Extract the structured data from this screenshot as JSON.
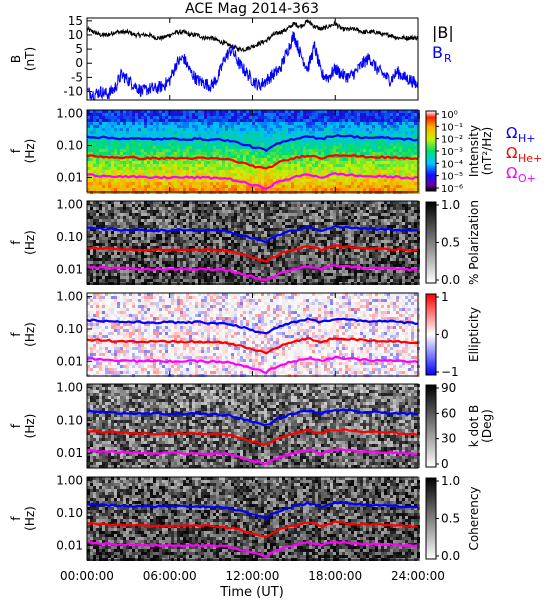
{
  "chart_data": {
    "type": "line",
    "title": "ACE Mag 2014-363",
    "xlabel": "Time (UT)",
    "x_ticks": [
      "00:00:00",
      "06:00:00",
      "12:00:00",
      "18:00:00",
      "24:00:00"
    ],
    "xlim_hours": [
      0,
      24
    ],
    "panels": [
      {
        "kind": "line",
        "ylabel": "B\n(nT)",
        "ylim": [
          -13,
          16
        ],
        "yticks": [
          "15",
          "10",
          "5",
          "0",
          "-5",
          "-10"
        ],
        "legend_items": [
          {
            "label": "|B|",
            "color": "#000000"
          },
          {
            "label": "B",
            "sub": "R",
            "color": "#0000ff"
          }
        ],
        "series": [
          {
            "name": "|B|",
            "color": "#000000",
            "x": [
              0,
              0.5,
              1,
              1.5,
              2,
              2.5,
              3,
              3.5,
              4,
              4.5,
              5,
              5.5,
              6,
              6.5,
              7,
              7.5,
              8,
              8.5,
              9,
              9.5,
              10,
              10.5,
              11,
              11.5,
              12,
              12.5,
              13,
              13.5,
              14,
              14.5,
              15,
              15.5,
              16,
              16.5,
              17,
              17.5,
              18,
              18.5,
              19,
              19.5,
              20,
              20.5,
              21,
              21.5,
              22,
              22.5,
              23,
              23.5,
              24
            ],
            "y": [
              12,
              11,
              10,
              10,
              11,
              11,
              11,
              10,
              10,
              10,
              9,
              9,
              10,
              11,
              11,
              10,
              10,
              9,
              9,
              8,
              7,
              6,
              5,
              5,
              6,
              7,
              8,
              10,
              11,
              12,
              14,
              13,
              15,
              13,
              12,
              13,
              14,
              12,
              12,
              12,
              11,
              11,
              11,
              10,
              10,
              9,
              9,
              9,
              9
            ]
          },
          {
            "name": "B_R",
            "color": "#0000ff",
            "x": [
              0,
              0.5,
              1,
              1.5,
              2,
              2.5,
              3,
              3.5,
              4,
              4.5,
              5,
              5.5,
              6,
              6.5,
              7,
              7.5,
              8,
              8.5,
              9,
              9.5,
              10,
              10.5,
              11,
              11.5,
              12,
              12.5,
              13,
              13.5,
              14,
              14.5,
              15,
              15.5,
              16,
              16.5,
              17,
              17.5,
              18,
              18.5,
              19,
              19.5,
              20,
              20.5,
              21,
              21.5,
              22,
              22.5,
              23,
              23.5,
              24
            ],
            "y": [
              -10,
              -11,
              -10,
              -11,
              -9,
              -4,
              -6,
              -8,
              -10,
              -9,
              -9,
              -8,
              -6,
              0,
              2,
              -3,
              -6,
              -7,
              -8,
              -5,
              2,
              5,
              0,
              -3,
              -6,
              -8,
              -6,
              -4,
              -2,
              4,
              10,
              3,
              -2,
              6,
              -4,
              -5,
              -2,
              -4,
              -5,
              -3,
              0,
              2,
              -2,
              -4,
              -6,
              -3,
              -5,
              -6,
              -8
            ]
          }
        ]
      },
      {
        "kind": "spectrogram",
        "ylabel": "f\n(Hz)",
        "ylim_log": [
          0.0035,
          1.3
        ],
        "yticks": [
          "1.00",
          "0.10",
          "0.01"
        ],
        "colorbar": {
          "type": "rainbow",
          "label": "Intensity\n(nT²/Hz)",
          "ticks": [
            "10⁰",
            "10⁻¹",
            "10⁻²",
            "10⁻³",
            "10⁻⁴",
            "10⁻⁵",
            "10⁻⁶"
          ]
        },
        "side_labels": [
          {
            "base": "Ω",
            "sub": "H+",
            "color": "#0000ff"
          },
          {
            "base": "Ω",
            "sub": "He+",
            "color": "#ff0000"
          },
          {
            "base": "Ω",
            "sub": "O+",
            "color": "#ff00ff"
          }
        ]
      },
      {
        "kind": "spectrogram",
        "ylabel": "f\n(Hz)",
        "ylim_log": [
          0.0035,
          1.3
        ],
        "yticks": [
          "1.00",
          "0.10",
          "0.01"
        ],
        "colorbar": {
          "type": "gray",
          "label": "% Polarization",
          "ticks": [
            "1.0",
            "0.5",
            "0.0"
          ]
        }
      },
      {
        "kind": "spectrogram",
        "ylabel": "f\n(Hz)",
        "ylim_log": [
          0.0035,
          1.3
        ],
        "yticks": [
          "1.00",
          "0.10",
          "0.01"
        ],
        "colorbar": {
          "type": "bwr",
          "label": "Ellipticity",
          "ticks": [
            "1",
            "0",
            "−1"
          ]
        }
      },
      {
        "kind": "spectrogram",
        "ylabel": "f\n(Hz)",
        "ylim_log": [
          0.0035,
          1.3
        ],
        "yticks": [
          "1.00",
          "0.10",
          "0.01"
        ],
        "colorbar": {
          "type": "gray",
          "label": "k dot B\n(Deg)",
          "ticks": [
            "90",
            "60",
            "30",
            "0"
          ]
        }
      },
      {
        "kind": "spectrogram",
        "ylabel": "f\n(Hz)",
        "ylim_log": [
          0.0035,
          1.3
        ],
        "yticks": [
          "1.00",
          "0.10",
          "0.01"
        ],
        "colorbar": {
          "type": "gray",
          "label": "Coherency",
          "ticks": [
            "1.0",
            "0.5",
            "0.0"
          ]
        }
      }
    ],
    "gyrofrequency_lines": [
      {
        "name": "ΩH+",
        "color": "#0000ff",
        "x": [
          0,
          2,
          4,
          6,
          8,
          10,
          12,
          13,
          14,
          16,
          17,
          18,
          20,
          22,
          24
        ],
        "y": [
          0.19,
          0.17,
          0.16,
          0.16,
          0.16,
          0.15,
          0.09,
          0.07,
          0.12,
          0.2,
          0.16,
          0.21,
          0.18,
          0.17,
          0.15
        ]
      },
      {
        "name": "ΩHe+",
        "color": "#ff0000",
        "x": [
          0,
          2,
          4,
          6,
          8,
          10,
          12,
          13,
          14,
          16,
          17,
          18,
          20,
          22,
          24
        ],
        "y": [
          0.047,
          0.043,
          0.04,
          0.04,
          0.04,
          0.038,
          0.023,
          0.018,
          0.03,
          0.05,
          0.04,
          0.052,
          0.045,
          0.042,
          0.038
        ]
      },
      {
        "name": "ΩO+",
        "color": "#ff00ff",
        "x": [
          0,
          2,
          4,
          6,
          8,
          10,
          12,
          13,
          14,
          16,
          17,
          18,
          20,
          22,
          24
        ],
        "y": [
          0.012,
          0.011,
          0.01,
          0.01,
          0.01,
          0.0095,
          0.0058,
          0.0046,
          0.0075,
          0.0125,
          0.01,
          0.013,
          0.011,
          0.0105,
          0.0095
        ]
      }
    ]
  }
}
